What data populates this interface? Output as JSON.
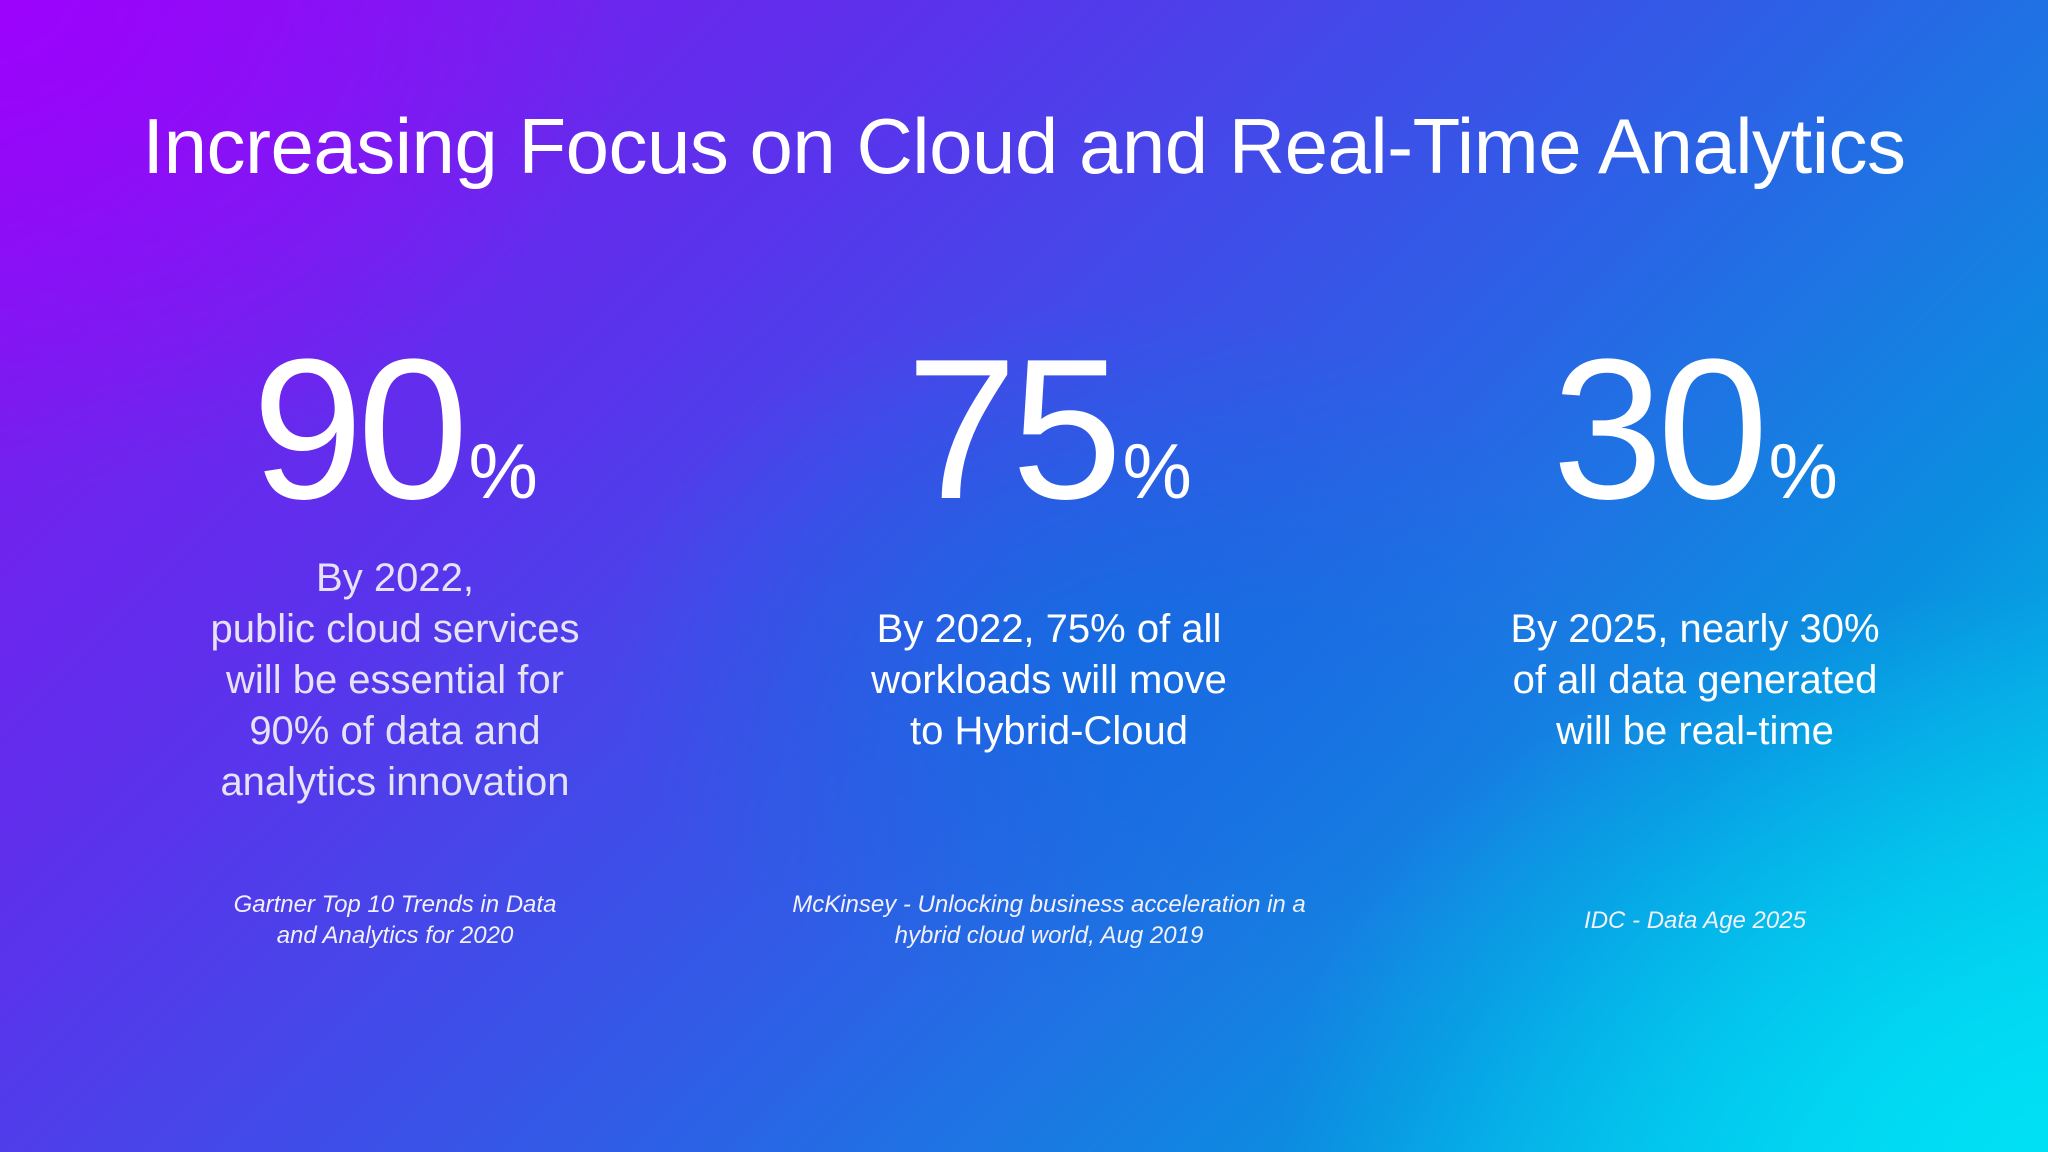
{
  "slide": {
    "title": "Increasing Focus on Cloud and Real-Time Analytics",
    "stats": [
      {
        "number": "90",
        "unit": "%",
        "description": "By 2022,\npublic cloud services\nwill be essential for\n90% of data and\nanalytics innovation",
        "source": "Gartner Top 10 Trends in Data\nand Analytics for 2020"
      },
      {
        "number": "75",
        "unit": "%",
        "description": "By 2022, 75% of all\nworkloads will move\nto Hybrid-Cloud",
        "source": "McKinsey - Unlocking business acceleration in a\nhybrid cloud world, Aug 2019"
      },
      {
        "number": "30",
        "unit": "%",
        "description": "By 2025, nearly 30%\nof all data generated\nwill be real-time",
        "source": "IDC  - Data Age 2025"
      }
    ]
  },
  "colors": {
    "gradient_start": "#8a10f0",
    "gradient_mid": "#2f5de6",
    "gradient_end": "#00d4ee",
    "text": "#ffffff"
  }
}
